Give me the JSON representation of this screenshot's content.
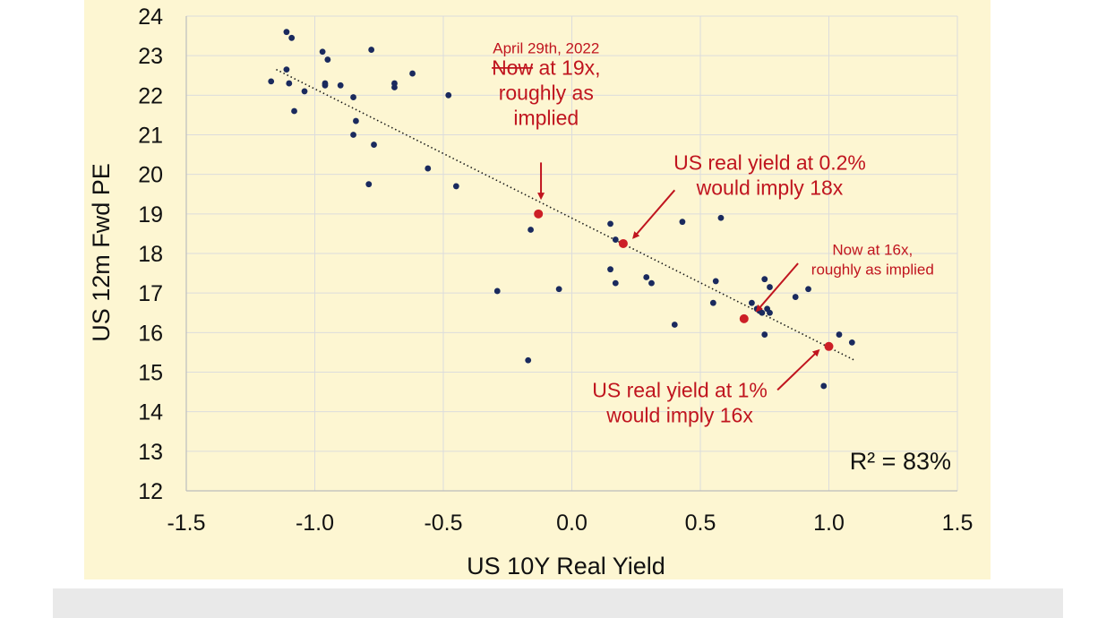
{
  "colors": {
    "background": "#fdf6d2",
    "footer": "#e9e9e9",
    "point": "#1a2a5e",
    "highlight": "#cc1f26",
    "annotation": "#c0151f",
    "grid": "#dcdcdc",
    "trend": "#1a1a1a"
  },
  "chart_data": {
    "type": "scatter",
    "title": "",
    "xlabel": "US 10Y Real Yield",
    "ylabel": "US 12m Fwd PE",
    "xlim": [
      -1.5,
      1.5
    ],
    "ylim": [
      12,
      24
    ],
    "x_ticks": [
      "-1.5",
      "-1.0",
      "-0.5",
      "0.0",
      "0.5",
      "1.0",
      "1.5"
    ],
    "y_ticks": [
      "12",
      "13",
      "14",
      "15",
      "16",
      "17",
      "18",
      "19",
      "20",
      "21",
      "22",
      "23",
      "24"
    ],
    "grid": true,
    "r_squared_label": "R² = 83%",
    "trendline": {
      "style": "dotted",
      "from": [
        -1.15,
        22.65
      ],
      "to": [
        1.1,
        15.3
      ]
    },
    "series": [
      {
        "points": [
          [
            -1.17,
            22.35
          ],
          [
            -1.11,
            22.65
          ],
          [
            -1.11,
            23.6
          ],
          [
            -1.09,
            23.45
          ],
          [
            -1.1,
            22.3
          ],
          [
            -1.08,
            21.6
          ],
          [
            -1.04,
            22.1
          ],
          [
            -0.97,
            23.1
          ],
          [
            -0.96,
            22.3
          ],
          [
            -0.96,
            22.25
          ],
          [
            -0.95,
            22.9
          ],
          [
            -0.9,
            22.25
          ],
          [
            -0.85,
            21.95
          ],
          [
            -0.84,
            21.35
          ],
          [
            -0.85,
            21.0
          ],
          [
            -0.79,
            19.75
          ],
          [
            -0.77,
            20.75
          ],
          [
            -0.78,
            23.15
          ],
          [
            -0.69,
            22.3
          ],
          [
            -0.69,
            22.2
          ],
          [
            -0.62,
            22.55
          ],
          [
            -0.56,
            20.15
          ],
          [
            -0.48,
            22.0
          ],
          [
            -0.45,
            19.7
          ],
          [
            -0.29,
            17.05
          ],
          [
            -0.16,
            18.6
          ],
          [
            -0.17,
            15.3
          ],
          [
            -0.05,
            17.1
          ],
          [
            0.15,
            18.75
          ],
          [
            0.15,
            17.6
          ],
          [
            0.17,
            18.35
          ],
          [
            0.17,
            17.25
          ],
          [
            0.29,
            17.4
          ],
          [
            0.31,
            17.25
          ],
          [
            0.4,
            16.2
          ],
          [
            0.43,
            18.8
          ],
          [
            0.55,
            16.75
          ],
          [
            0.56,
            17.3
          ],
          [
            0.58,
            18.9
          ],
          [
            0.7,
            16.75
          ],
          [
            0.72,
            16.6
          ],
          [
            0.73,
            16.55
          ],
          [
            0.74,
            16.5
          ],
          [
            0.75,
            17.35
          ],
          [
            0.76,
            16.6
          ],
          [
            0.77,
            16.5
          ],
          [
            0.75,
            15.95
          ],
          [
            0.77,
            17.15
          ],
          [
            0.87,
            16.9
          ],
          [
            0.92,
            17.1
          ],
          [
            0.98,
            14.65
          ],
          [
            1.04,
            15.95
          ],
          [
            1.09,
            15.75
          ]
        ]
      },
      {
        "highlight": true,
        "points": [
          [
            -0.13,
            19.0
          ],
          [
            0.2,
            18.25
          ],
          [
            0.67,
            16.35
          ],
          [
            1.0,
            15.65
          ]
        ]
      }
    ],
    "annotations": [
      {
        "lines": [
          "April 29th, 2022"
        ],
        "x": -0.1,
        "y": 23.2,
        "size": "small"
      },
      {
        "lines": [
          "Now at 19x,",
          "roughly as",
          "implied"
        ],
        "struck": "Now",
        "x": -0.1,
        "y": 22.7,
        "size": "large"
      },
      {
        "lines": [
          "US real yield at 0.2%",
          "would imply 18x"
        ],
        "x": 0.77,
        "y": 20.3,
        "size": "large"
      },
      {
        "lines": [
          "Now at 16x,",
          "roughly as implied"
        ],
        "x": 1.17,
        "y": 18.1,
        "size": "small"
      },
      {
        "lines": [
          "US real yield at 1%",
          "would imply 16x"
        ],
        "x": 0.42,
        "y": 14.55,
        "size": "large"
      }
    ],
    "arrows": [
      {
        "from": [
          -0.12,
          20.3
        ],
        "to": [
          -0.12,
          19.4
        ]
      },
      {
        "from": [
          0.4,
          19.6
        ],
        "to": [
          0.24,
          18.4
        ]
      },
      {
        "from": [
          0.88,
          17.75
        ],
        "to": [
          0.72,
          16.55
        ]
      },
      {
        "from": [
          0.8,
          14.55
        ],
        "to": [
          0.96,
          15.55
        ]
      }
    ]
  }
}
